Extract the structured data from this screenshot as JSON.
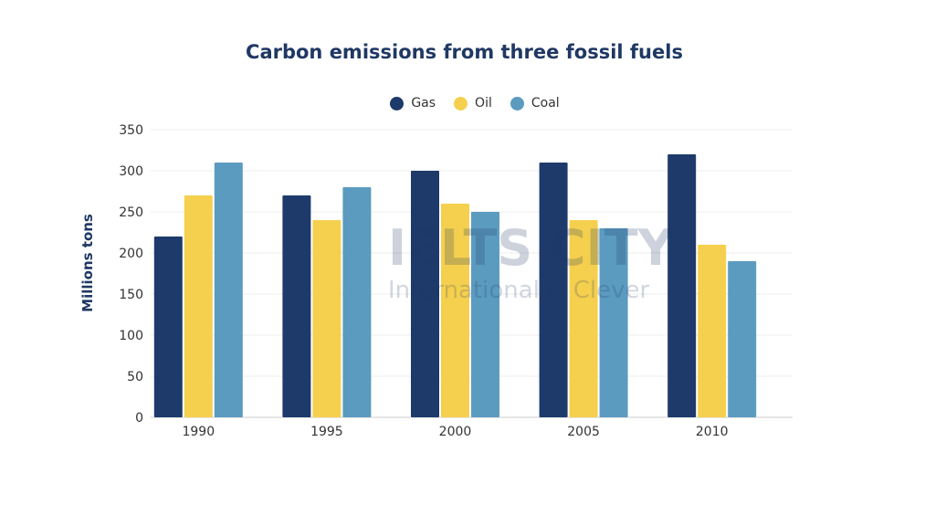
{
  "chart_data": {
    "type": "bar",
    "title": "Carbon emissions from three fossil fuels",
    "xlabel": "",
    "ylabel": "Millions tons",
    "categories": [
      "1990",
      "1995",
      "2000",
      "2005",
      "2010"
    ],
    "series": [
      {
        "name": "Gas",
        "color": "#1d3a6b",
        "values": [
          220,
          270,
          300,
          310,
          320
        ]
      },
      {
        "name": "Oil",
        "color": "#f5d04e",
        "values": [
          270,
          240,
          260,
          240,
          210
        ]
      },
      {
        "name": "Coal",
        "color": "#5b9bc0",
        "values": [
          310,
          280,
          250,
          230,
          190
        ]
      }
    ],
    "ylim": [
      0,
      350
    ],
    "yticks": [
      "0",
      "50",
      "100",
      "150",
      "200",
      "250",
      "300",
      "350"
    ],
    "grid": true,
    "legend_position": "top"
  },
  "watermark": {
    "line1": "IELTS CITY",
    "line2": "International & Clever"
  }
}
